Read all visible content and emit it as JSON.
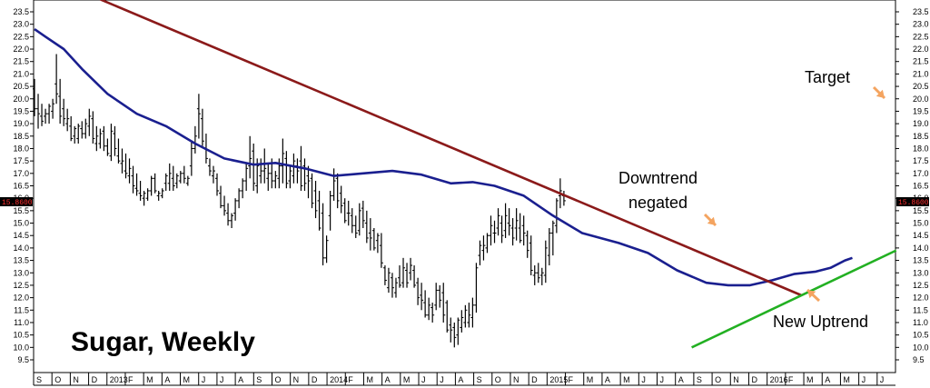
{
  "chart_data": {
    "type": "ohlc",
    "title": "Sugar, Weekly",
    "xlabel": "",
    "ylabel": "",
    "ylim": [
      9.5,
      23.5
    ],
    "y_ticks": [
      9.5,
      10.0,
      10.5,
      11.0,
      11.5,
      12.0,
      12.5,
      13.0,
      13.5,
      14.0,
      14.5,
      15.0,
      15.5,
      16.0,
      16.5,
      17.0,
      17.5,
      18.0,
      18.5,
      19.0,
      19.5,
      20.0,
      20.5,
      21.0,
      21.5,
      22.0,
      22.5,
      23.0,
      23.5
    ],
    "y_tick_labels": [
      "9.5",
      "10.0",
      "10.5",
      "11.0",
      "11.5",
      "12.0",
      "12.5",
      "13.0",
      "13.5",
      "14.0",
      "14.5",
      "15.0",
      "15.5",
      "16.0",
      "16.5",
      "17.0",
      "17.5",
      "18.0",
      "18.5",
      "19.0",
      "19.5",
      "20.0",
      "20.5",
      "21.0",
      "21.5",
      "22.0",
      "22.5",
      "23.0",
      "23.5"
    ],
    "last_price_label": "15.8600",
    "last_price": 15.86,
    "x_months": [
      "S",
      "O",
      "N",
      "D",
      "2013",
      "F",
      "M",
      "A",
      "M",
      "J",
      "J",
      "A",
      "S",
      "O",
      "N",
      "D",
      "2014",
      "F",
      "M",
      "A",
      "M",
      "J",
      "J",
      "A",
      "S",
      "O",
      "N",
      "D",
      "2015",
      "F",
      "M",
      "A",
      "M",
      "J",
      "J",
      "A",
      "S",
      "O",
      "N",
      "D",
      "2016",
      "F",
      "M",
      "A",
      "M",
      "J",
      "J"
    ],
    "grid": false,
    "series": [
      {
        "kind": "price_bars",
        "highs": [
          20.8,
          20.2,
          19.8,
          19.6,
          19.8,
          20.0,
          21.8,
          20.8,
          20.0,
          19.6,
          19.3,
          18.9,
          19.0,
          19.1,
          19.2,
          19.6,
          19.5,
          18.9,
          18.8,
          18.9,
          18.4,
          19.0,
          18.9,
          18.4,
          18.0,
          17.8,
          17.6,
          17.3,
          17.0,
          16.7,
          16.3,
          16.4,
          16.9,
          17.0,
          16.3,
          16.4,
          17.0,
          17.4,
          17.3,
          17.0,
          17.1,
          17.3,
          16.9,
          18.3,
          18.9,
          20.2,
          19.6,
          18.6,
          17.6,
          17.3,
          17.0,
          16.5,
          16.1,
          15.8,
          15.4,
          16.0,
          16.4,
          16.8,
          17.4,
          18.5,
          18.2,
          17.6,
          17.6,
          18.0,
          17.4,
          17.6,
          17.1,
          17.6,
          18.4,
          17.9,
          17.3,
          17.8,
          17.6,
          18.1,
          17.6,
          17.3,
          17.0,
          16.7,
          16.3,
          15.8,
          14.5,
          16.3,
          17.2,
          17.0,
          16.5,
          16.0,
          15.9,
          15.6,
          15.3,
          15.8,
          15.9,
          15.5,
          15.2,
          14.8,
          14.6,
          14.6,
          13.3,
          13.2,
          13.0,
          12.8,
          13.3,
          13.6,
          13.4,
          13.6,
          13.3,
          12.8,
          12.6,
          12.3,
          12.0,
          11.8,
          12.6,
          12.5,
          12.6,
          11.9,
          11.2,
          11.0,
          11.2,
          11.5,
          11.7,
          11.8,
          12.0,
          13.4,
          14.3,
          14.5,
          14.6,
          15.3,
          15.1,
          15.6,
          15.3,
          15.8,
          15.6,
          15.2,
          15.6,
          15.4,
          15.3,
          14.7,
          14.5,
          13.3,
          13.4,
          13.2,
          14.3,
          14.8,
          15.1,
          16.0,
          16.8,
          16.3
        ],
        "lows": [
          19.3,
          18.8,
          18.9,
          19.0,
          19.0,
          19.2,
          19.8,
          19.0,
          18.9,
          18.7,
          18.3,
          18.2,
          18.2,
          18.4,
          18.4,
          18.5,
          18.2,
          17.9,
          18.0,
          17.9,
          17.7,
          17.5,
          17.7,
          17.4,
          17.0,
          16.8,
          16.6,
          16.2,
          16.1,
          15.9,
          15.7,
          15.9,
          16.1,
          16.2,
          15.9,
          16.0,
          16.3,
          16.3,
          16.3,
          16.4,
          16.6,
          16.6,
          16.5,
          16.9,
          17.8,
          18.4,
          18.1,
          17.4,
          16.9,
          16.6,
          16.1,
          15.6,
          15.3,
          14.9,
          14.8,
          15.1,
          15.6,
          16.0,
          16.3,
          16.8,
          16.3,
          16.2,
          16.6,
          16.6,
          16.3,
          16.4,
          16.4,
          16.4,
          16.6,
          16.4,
          16.4,
          16.6,
          16.6,
          16.3,
          16.3,
          16.0,
          15.6,
          15.2,
          14.7,
          13.3,
          13.4,
          14.7,
          15.9,
          15.6,
          15.4,
          15.0,
          14.9,
          14.6,
          14.4,
          14.5,
          14.8,
          14.2,
          13.9,
          13.9,
          13.8,
          13.2,
          12.5,
          12.2,
          12.0,
          12.0,
          12.4,
          12.4,
          12.4,
          12.7,
          12.4,
          11.7,
          11.5,
          11.2,
          11.1,
          11.0,
          11.5,
          11.6,
          11.0,
          10.6,
          10.2,
          10.0,
          10.1,
          10.6,
          10.8,
          10.8,
          10.8,
          11.4,
          13.3,
          13.5,
          13.8,
          14.1,
          14.2,
          14.5,
          14.2,
          14.4,
          14.5,
          14.1,
          14.3,
          14.2,
          14.1,
          13.6,
          12.9,
          12.5,
          12.6,
          12.5,
          12.6,
          13.3,
          13.7,
          14.6,
          15.6,
          15.7
        ],
        "opens": [
          20.4,
          19.6,
          19.3,
          19.3,
          19.4,
          19.5,
          20.6,
          20.1,
          19.6,
          19.0,
          18.9,
          18.5,
          18.4,
          18.8,
          18.6,
          18.9,
          19.2,
          18.2,
          18.2,
          18.7,
          18.1,
          17.7,
          18.6,
          17.7,
          17.4,
          17.1,
          16.9,
          16.9,
          16.4,
          16.2,
          16.0,
          16.0,
          16.3,
          16.8,
          16.1,
          16.1,
          16.6,
          16.6,
          16.8,
          16.6,
          16.7,
          17.0,
          16.6,
          17.3,
          18.0,
          19.6,
          19.2,
          18.0,
          17.3,
          16.9,
          16.8,
          16.2,
          15.7,
          15.4,
          15.1,
          15.4,
          15.9,
          16.3,
          16.7,
          17.3,
          17.9,
          16.5,
          16.9,
          17.1,
          16.8,
          17.0,
          16.7,
          16.8,
          17.3,
          17.6,
          16.7,
          16.9,
          17.3,
          17.5,
          17.3,
          16.9,
          16.8,
          16.3,
          15.9,
          15.4,
          13.6,
          15.3,
          16.1,
          16.8,
          16.2,
          15.8,
          15.4,
          15.3,
          14.9,
          14.7,
          15.6,
          15.0,
          14.6,
          14.7,
          14.3,
          14.1,
          13.2,
          12.4,
          12.8,
          12.2,
          12.8,
          12.6,
          13.1,
          13.0,
          13.1,
          12.6,
          12.1,
          11.8,
          11.3,
          11.6,
          11.7,
          12.3,
          12.2,
          11.8,
          10.9,
          10.8,
          10.5,
          10.8,
          11.0,
          11.0,
          11.2,
          11.7,
          13.7,
          13.9,
          14.0,
          14.5,
          14.6,
          14.8,
          15.0,
          14.7,
          15.0,
          14.8,
          14.8,
          14.8,
          14.9,
          14.5,
          14.2,
          12.9,
          13.0,
          12.9,
          12.9,
          13.7,
          14.6,
          14.9,
          16.1,
          16.1
        ],
        "closes": [
          19.6,
          19.4,
          19.1,
          19.4,
          19.7,
          19.8,
          20.2,
          19.3,
          19.2,
          19.2,
          18.4,
          18.8,
          18.9,
          18.6,
          19.0,
          19.3,
          18.4,
          18.5,
          18.6,
          18.1,
          17.8,
          18.7,
          18.0,
          17.5,
          17.5,
          17.0,
          17.2,
          16.5,
          16.3,
          16.1,
          16.2,
          16.3,
          16.8,
          16.3,
          16.2,
          16.3,
          16.9,
          17.0,
          16.5,
          16.9,
          17.0,
          16.8,
          16.8,
          18.0,
          18.5,
          19.4,
          18.3,
          17.6,
          17.1,
          17.1,
          16.3,
          15.7,
          15.5,
          15.1,
          15.3,
          15.9,
          16.3,
          16.7,
          17.2,
          17.6,
          16.6,
          17.3,
          17.1,
          17.2,
          17.0,
          16.7,
          16.9,
          17.3,
          17.8,
          16.6,
          17.1,
          17.5,
          17.1,
          16.5,
          16.6,
          16.7,
          15.8,
          15.5,
          14.8,
          13.6,
          14.3,
          16.1,
          16.7,
          15.9,
          15.7,
          15.1,
          15.4,
          14.9,
          14.6,
          15.5,
          15.1,
          14.4,
          14.4,
          14.0,
          14.5,
          13.4,
          12.7,
          13.0,
          12.4,
          12.6,
          12.5,
          13.2,
          12.6,
          13.3,
          12.5,
          12.0,
          11.9,
          11.3,
          11.7,
          11.3,
          12.3,
          11.9,
          11.3,
          10.7,
          10.7,
          10.4,
          11.1,
          11.2,
          11.5,
          11.3,
          11.7,
          13.2,
          14.1,
          14.1,
          14.5,
          14.9,
          14.6,
          15.3,
          14.5,
          15.3,
          14.9,
          14.4,
          15.1,
          14.3,
          14.6,
          13.9,
          13.1,
          13.0,
          12.8,
          13.0,
          14.0,
          14.6,
          15.0,
          15.9,
          16.3,
          15.9
        ]
      },
      {
        "kind": "moving_average",
        "color": "#1a1f8f",
        "points": [
          [
            0,
            22.8
          ],
          [
            3,
            22.5
          ],
          [
            8,
            22.0
          ],
          [
            13,
            21.2
          ],
          [
            20,
            20.2
          ],
          [
            28,
            19.4
          ],
          [
            36,
            18.9
          ],
          [
            44,
            18.2
          ],
          [
            52,
            17.6
          ],
          [
            60,
            17.35
          ],
          [
            66,
            17.42
          ],
          [
            74,
            17.2
          ],
          [
            82,
            16.9
          ],
          [
            90,
            17.0
          ],
          [
            98,
            17.1
          ],
          [
            106,
            16.95
          ],
          [
            114,
            16.6
          ],
          [
            120,
            16.65
          ],
          [
            126,
            16.5
          ],
          [
            134,
            16.1
          ],
          [
            142,
            15.3
          ],
          [
            150,
            14.6
          ],
          [
            160,
            14.2
          ],
          [
            168,
            13.8
          ],
          [
            176,
            13.1
          ],
          [
            184,
            12.6
          ],
          [
            190,
            12.5
          ],
          [
            196,
            12.5
          ],
          [
            202,
            12.7
          ],
          [
            208,
            12.95
          ],
          [
            214,
            13.05
          ],
          [
            218,
            13.2
          ],
          [
            222,
            13.5
          ],
          [
            224,
            13.6
          ]
        ]
      },
      {
        "kind": "downtrend_line",
        "color": "#8b1a1a",
        "points": [
          [
            18,
            24.0
          ],
          [
            210,
            12.1
          ]
        ]
      },
      {
        "kind": "uptrend_line",
        "color": "#22b022",
        "points": [
          [
            180,
            10.0
          ],
          [
            236,
            13.9
          ]
        ]
      }
    ],
    "annotations": [
      {
        "text": "Target",
        "value": 21.0
      },
      {
        "text": "Downtrend",
        "value": 16.7
      },
      {
        "text": "negated",
        "value": 15.7
      },
      {
        "text": "New Uptrend",
        "value": 10.9
      }
    ],
    "arrow_color": "#f4a460"
  }
}
